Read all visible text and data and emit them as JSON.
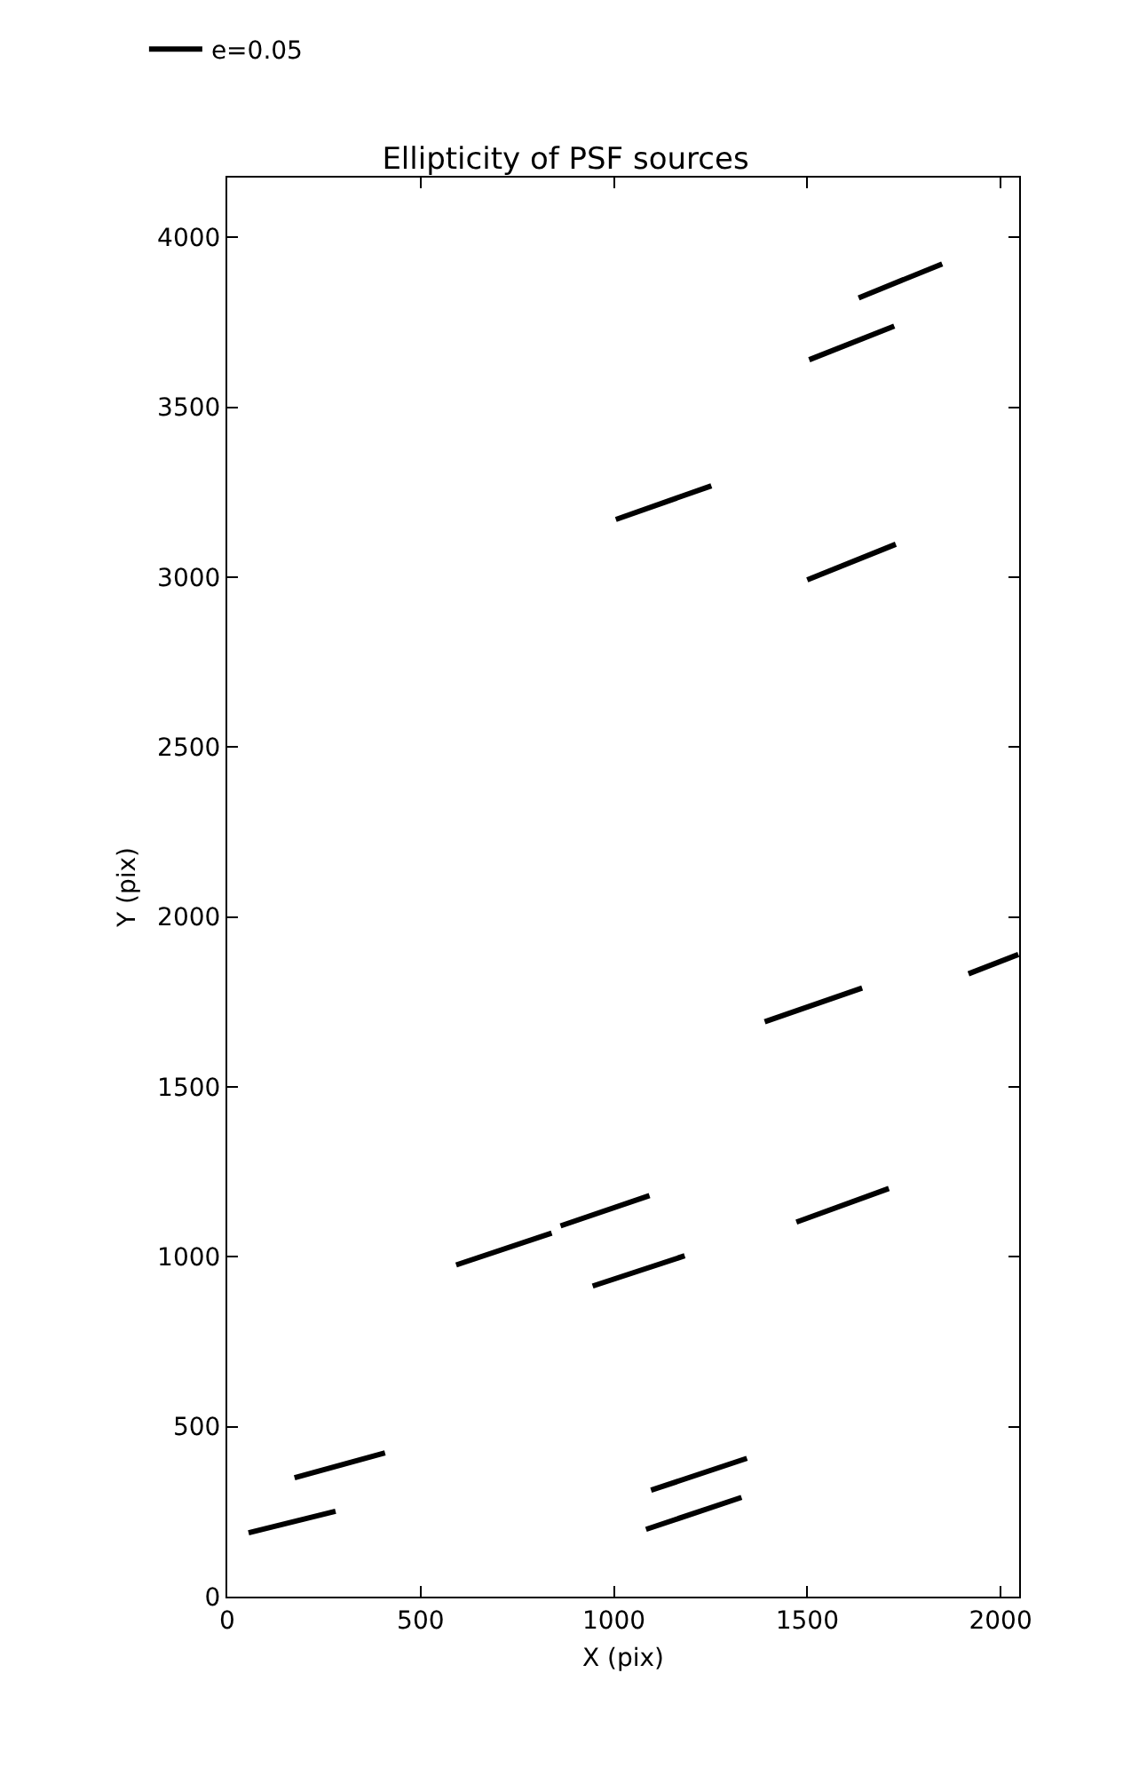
{
  "chart_data": {
    "type": "line",
    "title": "Ellipticity of PSF sources",
    "xlabel": "X (pix)",
    "ylabel": "Y (pix)",
    "xlim": [
      0,
      2048
    ],
    "ylim": [
      0,
      4176
    ],
    "xticks": [
      0,
      500,
      1000,
      1500,
      2000
    ],
    "yticks": [
      0,
      500,
      1000,
      1500,
      2000,
      2500,
      3000,
      3500,
      4000
    ],
    "legend": "top left",
    "marker": "none",
    "line_style": "solid",
    "series": [
      {
        "name": "e=0.05",
        "color": "#000000",
        "x": [
          55,
          280,
          null,
          174,
          408,
          null,
          592,
          839,
          null,
          862,
          1092,
          null,
          945,
          1183,
          null,
          1096,
          1344,
          null,
          1083,
          1330,
          null,
          1472,
          1711,
          null,
          1390,
          1642,
          null,
          1917,
          2046,
          null,
          1005,
          1252,
          null,
          1500,
          1729,
          null,
          1505,
          1725,
          null,
          1633,
          1849
        ],
        "values": [
          188,
          251,
          null,
          350,
          423,
          null,
          976,
          1070,
          null,
          1091,
          1180,
          null,
          914,
          1003,
          null,
          313,
          407,
          null,
          198,
          292,
          null,
          1102,
          1201,
          null,
          1692,
          1791,
          null,
          1833,
          1890,
          null,
          3170,
          3269,
          null,
          2992,
          3097,
          null,
          3640,
          3739,
          null,
          3822,
          3922
        ]
      }
    ]
  }
}
